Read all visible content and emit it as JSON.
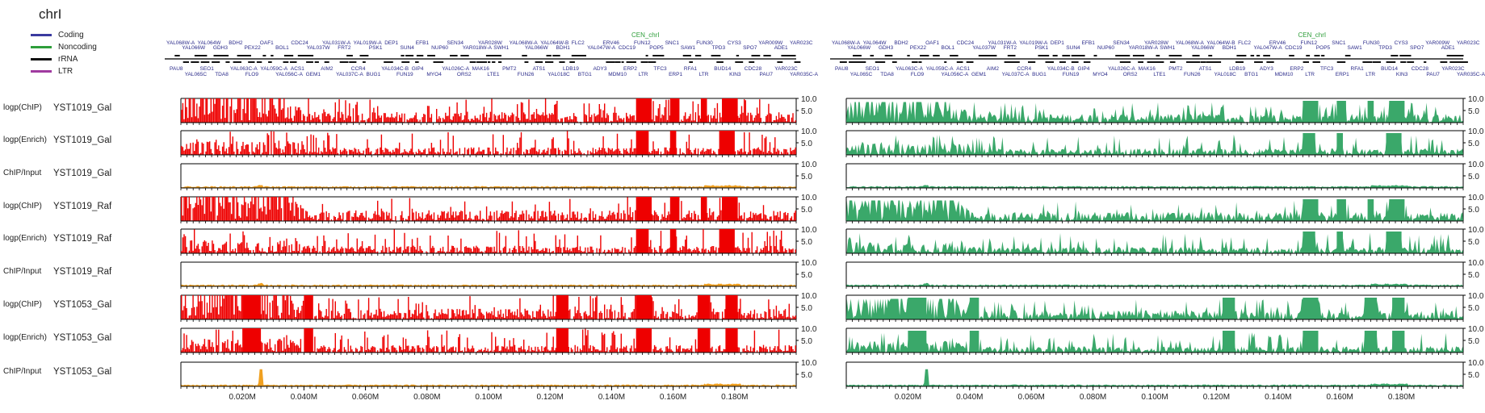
{
  "chromosome": "chrI",
  "legend": [
    {
      "label": "Coding",
      "color": "#3a3aa0"
    },
    {
      "label": "Noncoding",
      "color": "#2e9e3a"
    },
    {
      "label": "rRNA",
      "color": "#111111"
    },
    {
      "label": "LTR",
      "color": "#a03aa0"
    }
  ],
  "colors": {
    "left_panel": "#ee0000",
    "right_panel": "#3aa86a",
    "ratio_track": "#f0a020",
    "gene_label": "#2a2a8a",
    "centromere": "#2e9e3a"
  },
  "centromere_label": "CEN_chrI",
  "gene_labels_top": [
    "YAL068W-A",
    "YAL066W",
    "YAL064W",
    "GDH3",
    "BDH2",
    "PEX22",
    "OAF1",
    "BOL1",
    "CDC24",
    "YAL037W",
    "YAL031W-A",
    "FRT2",
    "YAL019W-A",
    "PSK1",
    "DEP1",
    "SUN4",
    "EFB1",
    "NUP60",
    "SEN34",
    "YAR018W-A",
    "YAR028W",
    "SWH1",
    "YAL068W-A",
    "YAL066W",
    "YAL064W-B",
    "BDH1",
    "FLC2",
    "YAL047W-A",
    "ERV46",
    "CDC19",
    "FUN12",
    "POP5",
    "SNC1",
    "SAW1",
    "FUN30",
    "TPD3",
    "CYS3",
    "SPO7",
    "YAR009W",
    "ADE1",
    "YAR023C"
  ],
  "gene_labels_bottom": [
    "PAU8",
    "YAL065C",
    "SEO1",
    "TDA8",
    "YAL063C-A",
    "FLO9",
    "YAL059C-A",
    "YAL056C-A",
    "ACS1",
    "GEM1",
    "AIM2",
    "YAL037C-A",
    "CCR4",
    "BUG1",
    "YAL034C-B",
    "FUN19",
    "GIP4",
    "MYO4",
    "YAL026C-A",
    "ORS2",
    "MAK16",
    "LTE1",
    "PMT2",
    "FUN26",
    "ATS1",
    "YAL018C",
    "LDB19",
    "BTG1",
    "ADY3",
    "MDM10",
    "ERP2",
    "LTR",
    "TFC3",
    "ERP1",
    "RFA1",
    "LTR",
    "BUD14",
    "KIN3",
    "CDC28",
    "PAU7",
    "YAR023C",
    "YAR035C-A"
  ],
  "tracks": [
    {
      "type": "logp(ChIP)",
      "sample": "YST1019_Gal",
      "kind": "logp"
    },
    {
      "type": "logp(Enrich)",
      "sample": "YST1019_Gal",
      "kind": "enrich"
    },
    {
      "type": "ChIP/Input",
      "sample": "YST1019_Gal",
      "kind": "ratio"
    },
    {
      "type": "logp(ChIP)",
      "sample": "YST1019_Raf",
      "kind": "logp"
    },
    {
      "type": "logp(Enrich)",
      "sample": "YST1019_Raf",
      "kind": "enrich"
    },
    {
      "type": "ChIP/Input",
      "sample": "YST1019_Raf",
      "kind": "ratio"
    },
    {
      "type": "logp(ChIP)",
      "sample": "YST1053_Gal",
      "kind": "logp"
    },
    {
      "type": "logp(Enrich)",
      "sample": "YST1053_Gal",
      "kind": "enrich"
    },
    {
      "type": "ChIP/Input",
      "sample": "YST1053_Gal",
      "kind": "ratio"
    }
  ],
  "chart_data": {
    "type": "area",
    "xlim": [
      0,
      0.2
    ],
    "ylim": [
      0,
      10
    ],
    "y_ticks": [
      "10.0",
      "5.0"
    ],
    "x_ticks": [
      "0.020M",
      "0.040M",
      "0.060M",
      "0.080M",
      "0.100M",
      "0.120M",
      "0.140M",
      "0.160M",
      "0.180M"
    ],
    "x_tick_values": [
      0.02,
      0.04,
      0.06,
      0.08,
      0.1,
      0.12,
      0.14,
      0.16,
      0.18
    ],
    "centromere_position": 0.151,
    "saturated_regions_logp": [
      [
        0.148,
        0.153
      ],
      [
        0.159,
        0.162
      ],
      [
        0.169,
        0.171
      ],
      [
        0.176,
        0.181
      ]
    ],
    "saturated_regions_enrich": [
      [
        0.148,
        0.152
      ],
      [
        0.159,
        0.161
      ],
      [
        0.175,
        0.18
      ]
    ],
    "saturated_regions_1053": [
      [
        0.02,
        0.026
      ],
      [
        0.04,
        0.043
      ],
      [
        0.122,
        0.126
      ],
      [
        0.148,
        0.153
      ],
      [
        0.168,
        0.172
      ],
      [
        0.177,
        0.181
      ]
    ]
  }
}
